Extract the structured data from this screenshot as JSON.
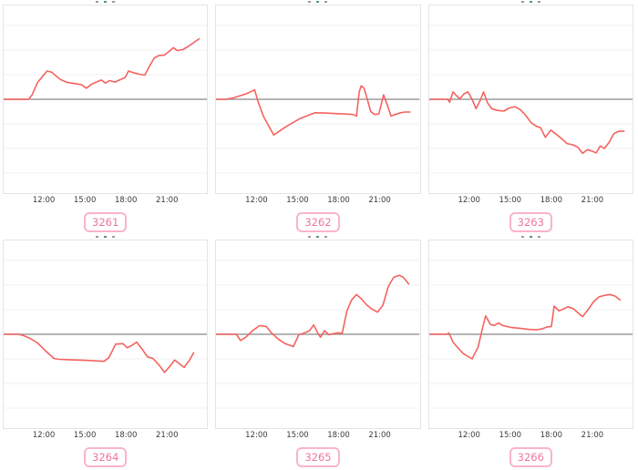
{
  "colors": {
    "line": "#f4625f",
    "zero_line": "#9b9b9b",
    "gridline": "#f0f0f0",
    "panel_border": "#e4e4e4",
    "panel_bg": "#ffffff",
    "tick_text": "#3b3b3b",
    "badge_border": "#f9b4c9",
    "badge_text": "#f0749f"
  },
  "x_axis": {
    "ticks": [
      "12:00",
      "15:00",
      "18:00",
      "21:00"
    ],
    "tick_hours": [
      12,
      15,
      18,
      21
    ],
    "domain_hours": [
      9,
      24
    ]
  },
  "y_axis": {
    "baseline": 0,
    "gridline_step": 1,
    "range": [
      -3.8,
      3.8
    ],
    "labels_visible": false
  },
  "chart_data": [
    {
      "type": "line",
      "badge_label": "3261",
      "points": [
        [
          9,
          0
        ],
        [
          10.85,
          0
        ],
        [
          11.1,
          0.18
        ],
        [
          11.5,
          0.68
        ],
        [
          11.85,
          0.92
        ],
        [
          12.2,
          1.15
        ],
        [
          12.55,
          1.1
        ],
        [
          12.85,
          0.95
        ],
        [
          13.2,
          0.8
        ],
        [
          13.7,
          0.68
        ],
        [
          14.2,
          0.64
        ],
        [
          14.7,
          0.6
        ],
        [
          15.1,
          0.45
        ],
        [
          15.5,
          0.62
        ],
        [
          15.9,
          0.72
        ],
        [
          16.2,
          0.78
        ],
        [
          16.5,
          0.66
        ],
        [
          16.8,
          0.76
        ],
        [
          17.2,
          0.7
        ],
        [
          17.6,
          0.8
        ],
        [
          17.95,
          0.88
        ],
        [
          18.2,
          1.15
        ],
        [
          18.55,
          1.08
        ],
        [
          19.0,
          1.02
        ],
        [
          19.4,
          0.98
        ],
        [
          19.75,
          1.35
        ],
        [
          20.1,
          1.68
        ],
        [
          20.45,
          1.78
        ],
        [
          20.85,
          1.8
        ],
        [
          21.2,
          1.95
        ],
        [
          21.5,
          2.1
        ],
        [
          21.8,
          1.98
        ],
        [
          22.2,
          2.02
        ],
        [
          22.6,
          2.15
        ],
        [
          23.0,
          2.3
        ],
        [
          23.4,
          2.46
        ]
      ]
    },
    {
      "type": "line",
      "badge_label": "3262",
      "points": [
        [
          9,
          0
        ],
        [
          9.7,
          0
        ],
        [
          10.3,
          0.06
        ],
        [
          11.2,
          0.22
        ],
        [
          11.85,
          0.38
        ],
        [
          12.1,
          -0.1
        ],
        [
          12.5,
          -0.7
        ],
        [
          13.25,
          -1.45
        ],
        [
          14.2,
          -1.1
        ],
        [
          15.2,
          -0.78
        ],
        [
          16.3,
          -0.55
        ],
        [
          17.0,
          -0.56
        ],
        [
          17.8,
          -0.58
        ],
        [
          18.6,
          -0.6
        ],
        [
          19.1,
          -0.62
        ],
        [
          19.35,
          -0.68
        ],
        [
          19.55,
          0.3
        ],
        [
          19.7,
          0.55
        ],
        [
          19.9,
          0.45
        ],
        [
          20.1,
          0.1
        ],
        [
          20.4,
          -0.5
        ],
        [
          20.7,
          -0.62
        ],
        [
          21.0,
          -0.6
        ],
        [
          21.35,
          0.18
        ],
        [
          21.6,
          -0.2
        ],
        [
          21.9,
          -0.68
        ],
        [
          22.2,
          -0.62
        ],
        [
          22.6,
          -0.55
        ],
        [
          22.9,
          -0.52
        ],
        [
          23.3,
          -0.52
        ]
      ]
    },
    {
      "type": "line",
      "badge_label": "3263",
      "points": [
        [
          9,
          0
        ],
        [
          10.35,
          0
        ],
        [
          10.5,
          -0.12
        ],
        [
          10.75,
          0.3
        ],
        [
          11.0,
          0.15
        ],
        [
          11.25,
          0.02
        ],
        [
          11.55,
          0.22
        ],
        [
          11.85,
          0.3
        ],
        [
          12.15,
          0.0
        ],
        [
          12.45,
          -0.38
        ],
        [
          12.75,
          -0.05
        ],
        [
          13.0,
          0.3
        ],
        [
          13.3,
          -0.15
        ],
        [
          13.6,
          -0.38
        ],
        [
          14.0,
          -0.45
        ],
        [
          14.5,
          -0.48
        ],
        [
          14.9,
          -0.35
        ],
        [
          15.3,
          -0.3
        ],
        [
          15.7,
          -0.42
        ],
        [
          16.1,
          -0.65
        ],
        [
          16.5,
          -0.95
        ],
        [
          16.9,
          -1.1
        ],
        [
          17.2,
          -1.15
        ],
        [
          17.55,
          -1.55
        ],
        [
          17.95,
          -1.25
        ],
        [
          18.3,
          -1.4
        ],
        [
          18.75,
          -1.6
        ],
        [
          19.15,
          -1.8
        ],
        [
          19.55,
          -1.85
        ],
        [
          19.95,
          -1.95
        ],
        [
          20.3,
          -2.2
        ],
        [
          20.65,
          -2.05
        ],
        [
          20.95,
          -2.1
        ],
        [
          21.3,
          -2.18
        ],
        [
          21.6,
          -1.9
        ],
        [
          21.9,
          -2.0
        ],
        [
          22.25,
          -1.75
        ],
        [
          22.6,
          -1.4
        ],
        [
          22.95,
          -1.3
        ],
        [
          23.35,
          -1.3
        ]
      ]
    },
    {
      "type": "line",
      "badge_label": "3264",
      "points": [
        [
          9,
          0
        ],
        [
          10.1,
          0
        ],
        [
          10.5,
          -0.06
        ],
        [
          11.0,
          -0.18
        ],
        [
          11.5,
          -0.35
        ],
        [
          12.1,
          -0.68
        ],
        [
          12.7,
          -0.98
        ],
        [
          13.1,
          -1.02
        ],
        [
          14.0,
          -1.04
        ],
        [
          15.0,
          -1.06
        ],
        [
          15.8,
          -1.08
        ],
        [
          16.4,
          -1.1
        ],
        [
          16.75,
          -0.95
        ],
        [
          17.25,
          -0.4
        ],
        [
          17.8,
          -0.38
        ],
        [
          18.1,
          -0.55
        ],
        [
          18.45,
          -0.45
        ],
        [
          18.8,
          -0.32
        ],
        [
          19.2,
          -0.6
        ],
        [
          19.6,
          -0.92
        ],
        [
          20.0,
          -0.98
        ],
        [
          20.45,
          -1.25
        ],
        [
          20.85,
          -1.55
        ],
        [
          21.25,
          -1.3
        ],
        [
          21.6,
          -1.05
        ],
        [
          21.95,
          -1.2
        ],
        [
          22.3,
          -1.35
        ],
        [
          22.7,
          -1.05
        ],
        [
          23.0,
          -0.75
        ]
      ]
    },
    {
      "type": "line",
      "badge_label": "3265",
      "points": [
        [
          9,
          0
        ],
        [
          10.5,
          0
        ],
        [
          10.8,
          -0.25
        ],
        [
          11.2,
          -0.12
        ],
        [
          11.7,
          0.15
        ],
        [
          12.2,
          0.35
        ],
        [
          12.7,
          0.32
        ],
        [
          13.1,
          0.05
        ],
        [
          13.6,
          -0.2
        ],
        [
          14.1,
          -0.38
        ],
        [
          14.7,
          -0.5
        ],
        [
          15.1,
          -0.02
        ],
        [
          15.5,
          0.05
        ],
        [
          15.9,
          0.15
        ],
        [
          16.2,
          0.38
        ],
        [
          16.5,
          0.05
        ],
        [
          16.7,
          -0.12
        ],
        [
          17.0,
          0.15
        ],
        [
          17.3,
          -0.02
        ],
        [
          17.7,
          0.03
        ],
        [
          18.0,
          0.06
        ],
        [
          18.3,
          0.04
        ],
        [
          18.65,
          0.95
        ],
        [
          19.0,
          1.4
        ],
        [
          19.35,
          1.62
        ],
        [
          19.7,
          1.45
        ],
        [
          20.1,
          1.2
        ],
        [
          20.5,
          1.02
        ],
        [
          20.9,
          0.9
        ],
        [
          21.3,
          1.18
        ],
        [
          21.7,
          1.95
        ],
        [
          22.1,
          2.32
        ],
        [
          22.5,
          2.4
        ],
        [
          22.8,
          2.32
        ],
        [
          23.2,
          2.05
        ]
      ]
    },
    {
      "type": "line",
      "badge_label": "3266",
      "points": [
        [
          9,
          0
        ],
        [
          10.25,
          0
        ],
        [
          10.45,
          0.05
        ],
        [
          10.75,
          -0.32
        ],
        [
          11.1,
          -0.55
        ],
        [
          11.5,
          -0.78
        ],
        [
          12.15,
          -1.0
        ],
        [
          12.6,
          -0.52
        ],
        [
          12.9,
          0.2
        ],
        [
          13.15,
          0.75
        ],
        [
          13.5,
          0.4
        ],
        [
          13.8,
          0.36
        ],
        [
          14.1,
          0.46
        ],
        [
          14.4,
          0.36
        ],
        [
          15.0,
          0.28
        ],
        [
          15.6,
          0.25
        ],
        [
          16.3,
          0.2
        ],
        [
          16.9,
          0.18
        ],
        [
          17.3,
          0.22
        ],
        [
          17.7,
          0.3
        ],
        [
          18.0,
          0.32
        ],
        [
          18.2,
          1.15
        ],
        [
          18.55,
          0.95
        ],
        [
          18.85,
          1.02
        ],
        [
          19.2,
          1.12
        ],
        [
          19.6,
          1.05
        ],
        [
          20.0,
          0.85
        ],
        [
          20.3,
          0.72
        ],
        [
          20.7,
          1.0
        ],
        [
          21.1,
          1.32
        ],
        [
          21.5,
          1.52
        ],
        [
          21.9,
          1.58
        ],
        [
          22.3,
          1.62
        ],
        [
          22.7,
          1.55
        ],
        [
          23.05,
          1.4
        ]
      ]
    }
  ]
}
